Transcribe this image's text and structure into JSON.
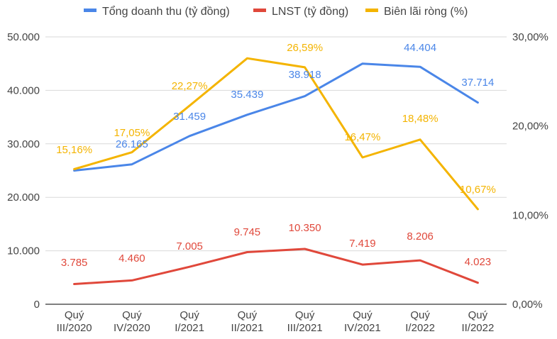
{
  "chart_data": {
    "type": "line",
    "categories": [
      [
        "Quý",
        "III/2020"
      ],
      [
        "Quý",
        "IV/2020"
      ],
      [
        "Quý",
        "I/2021"
      ],
      [
        "Quý",
        "II/2021"
      ],
      [
        "Quý",
        "III/2021"
      ],
      [
        "Quý",
        "IV/2021"
      ],
      [
        "Quý",
        "I/2022"
      ],
      [
        "Quý",
        "II/2022"
      ]
    ],
    "series": [
      {
        "name": "Tổng doanh thu (tỷ đồng)",
        "axis": "left",
        "color": "#4a86e8",
        "values": [
          25000,
          26165,
          31459,
          35439,
          38918,
          45000,
          44404,
          37714
        ],
        "labels": [
          "",
          "26.165",
          "31.459",
          "35.439",
          "38.918",
          "",
          "44.404",
          "37.714"
        ]
      },
      {
        "name": "LNST (tỷ đồng)",
        "axis": "left",
        "color": "#e0483b",
        "values": [
          3785,
          4460,
          7005,
          9745,
          10350,
          7419,
          8206,
          4023
        ],
        "labels": [
          "3.785",
          "4.460",
          "7.005",
          "9.745",
          "10.350",
          "7.419",
          "8.206",
          "4.023"
        ]
      },
      {
        "name": "Biên lãi ròng (%)",
        "axis": "right",
        "color": "#f4b400",
        "values": [
          15.16,
          17.05,
          22.27,
          27.6,
          26.59,
          16.47,
          18.48,
          10.67
        ],
        "labels": [
          "15,16%",
          "17,05%",
          "22,27%",
          "",
          "26,59%",
          "16,47%",
          "18,48%",
          "10,67%"
        ]
      }
    ],
    "left_axis": {
      "ylim": [
        0,
        50000
      ],
      "ticks": [
        0,
        10000,
        20000,
        30000,
        40000,
        50000
      ],
      "tick_labels": [
        "0",
        "10.000",
        "20.000",
        "30.000",
        "40.000",
        "50.000"
      ]
    },
    "right_axis": {
      "ylim": [
        0,
        30
      ],
      "ticks": [
        0,
        10,
        20,
        30
      ],
      "tick_labels": [
        "0,00%",
        "10,00%",
        "20,00%",
        "30,00%"
      ]
    },
    "grid": true,
    "legend_position": "top"
  }
}
